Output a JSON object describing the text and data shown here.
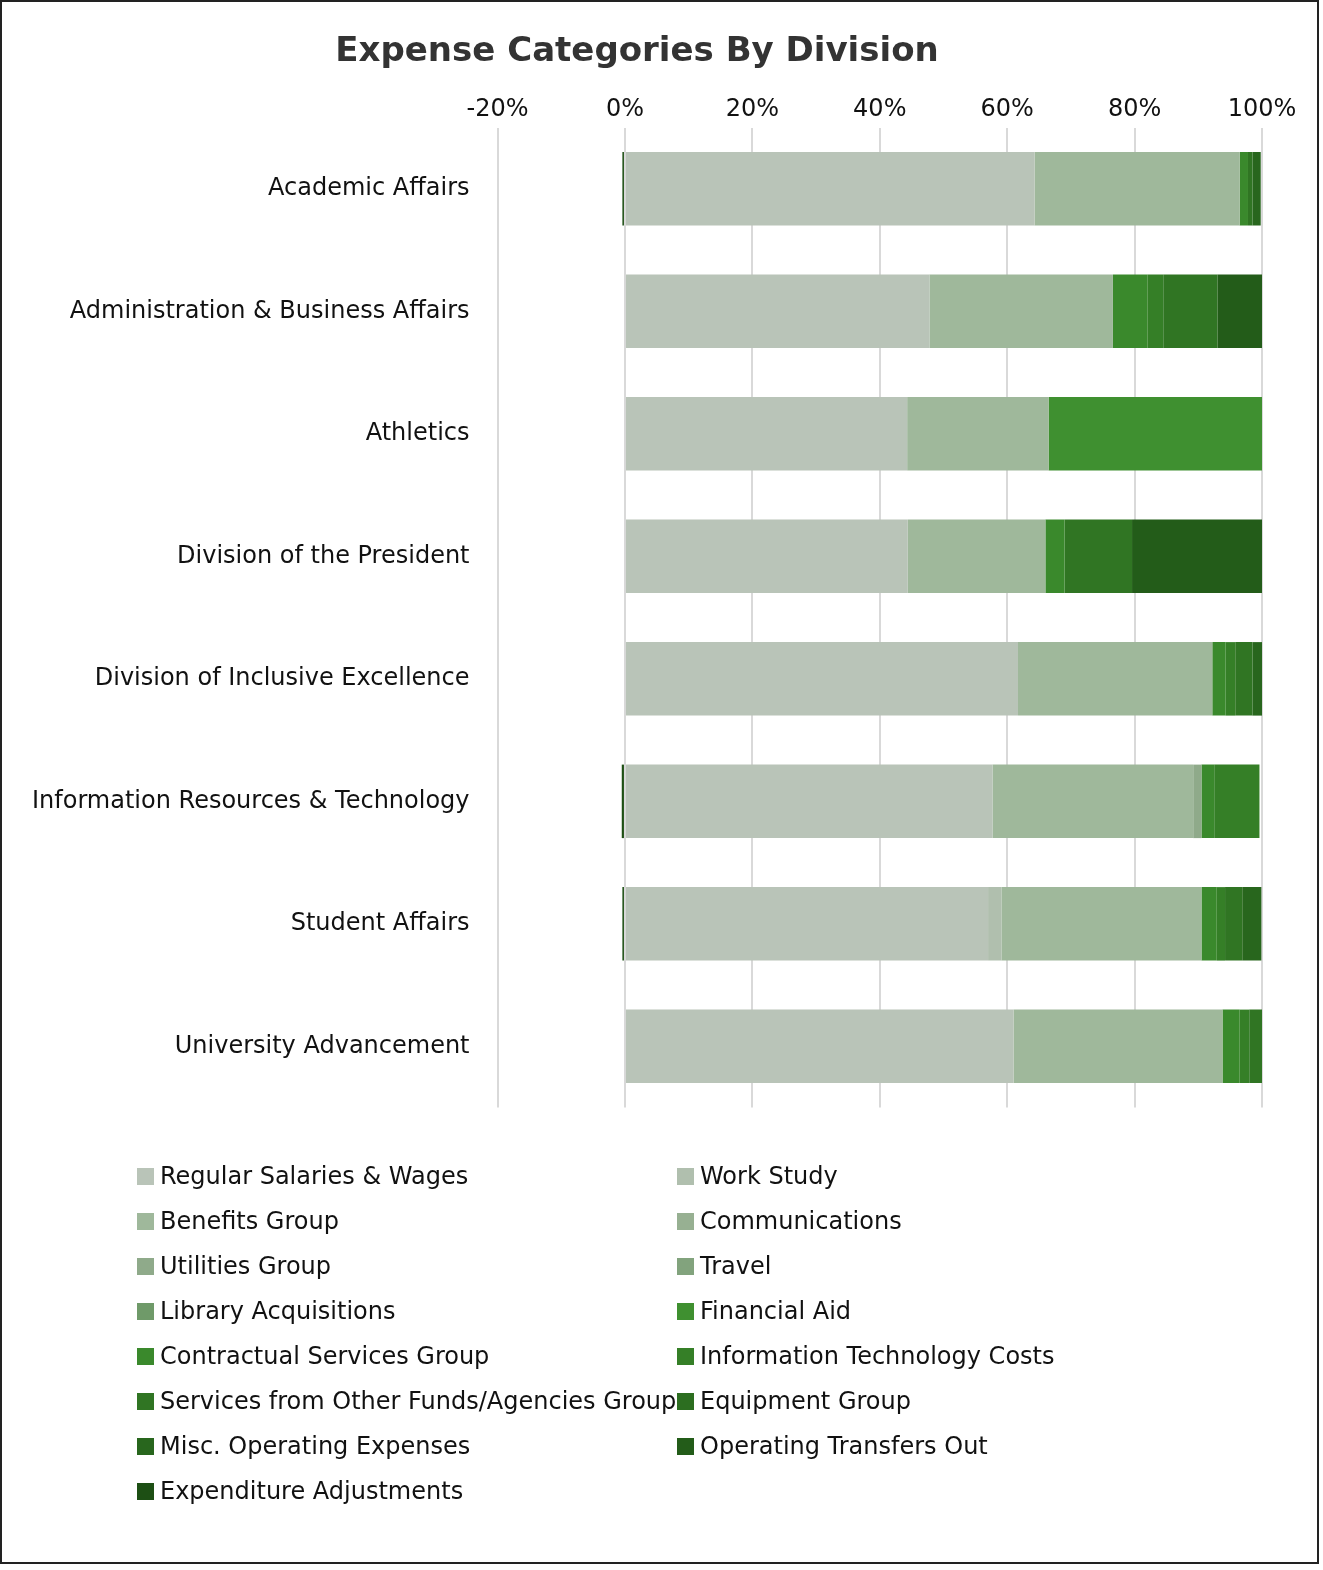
{
  "chart_data": {
    "type": "bar",
    "title": "Expense Categories By Division",
    "orientation": "horizontal",
    "stacked": true,
    "grid": "x",
    "legend": "bottom",
    "categories": [
      "Academic Affairs",
      "Administration & Business Affairs",
      "Athletics",
      "Division of the President",
      "Division of Inclusive Excellence",
      "Information Resources & Technology",
      "Student Affairs",
      "University Advancement"
    ],
    "xlim": [
      -20,
      100
    ],
    "xticks": [
      {
        "value": -20,
        "label": "-20%"
      },
      {
        "value": 0,
        "label": "0%"
      },
      {
        "value": 20,
        "label": "20%"
      },
      {
        "value": 40,
        "label": "40%"
      },
      {
        "value": 60,
        "label": "60%"
      },
      {
        "value": 80,
        "label": "80%"
      },
      {
        "value": 100,
        "label": "100%"
      }
    ],
    "series": [
      {
        "name": "Regular Salaries & Wages",
        "color": "#b9c4b8",
        "values": [
          64.3,
          47.8,
          44.3,
          44.4,
          61.7,
          57.7,
          57.0,
          61.0
        ]
      },
      {
        "name": "Work Study",
        "color": "#b0bfae",
        "values": [
          null,
          null,
          null,
          null,
          null,
          null,
          2.1,
          null
        ]
      },
      {
        "name": "Benefits Group",
        "color": "#9fb89b",
        "values": [
          32.2,
          28.8,
          22.2,
          21.6,
          30.5,
          31.5,
          31.4,
          32.8
        ]
      },
      {
        "name": "Communications",
        "color": "#97b092",
        "values": [
          null,
          null,
          null,
          null,
          null,
          null,
          null,
          null
        ]
      },
      {
        "name": "Utilities Group",
        "color": "#8faa8a",
        "values": [
          null,
          null,
          null,
          null,
          null,
          1.3,
          null,
          null
        ]
      },
      {
        "name": "Travel",
        "color": "#82a37d",
        "values": [
          null,
          null,
          null,
          null,
          null,
          null,
          null,
          null
        ]
      },
      {
        "name": "Library Acquisitions",
        "color": "#6f9a69",
        "values": [
          null,
          null,
          null,
          null,
          null,
          null,
          null,
          null
        ]
      },
      {
        "name": "Financial Aid",
        "color": "#3f9030",
        "values": [
          null,
          null,
          33.5,
          null,
          null,
          null,
          null,
          null
        ]
      },
      {
        "name": "Contractual Services Group",
        "color": "#3a892c",
        "values": [
          1.3,
          5.4,
          null,
          3.0,
          2.1,
          2.0,
          2.4,
          2.7
        ]
      },
      {
        "name": "Information Technology Costs",
        "color": "#357f27",
        "values": [
          null,
          2.5,
          null,
          null,
          1.5,
          7.1,
          1.3,
          1.5
        ]
      },
      {
        "name": "Services from Other Funds/Agencies Group",
        "color": "#307523",
        "values": [
          0.7,
          8.5,
          null,
          10.6,
          2.7,
          null,
          2.7,
          2.0
        ]
      },
      {
        "name": "Equipment Group",
        "color": "#2c6e20",
        "values": [
          null,
          null,
          null,
          null,
          null,
          null,
          null,
          null
        ]
      },
      {
        "name": "Misc. Operating Expenses",
        "color": "#28661d",
        "values": [
          1.3,
          null,
          null,
          null,
          1.5,
          null,
          3.0,
          null
        ]
      },
      {
        "name": "Operating Transfers Out",
        "color": "#235c19",
        "values": [
          null,
          7.0,
          null,
          20.4,
          null,
          null,
          null,
          null
        ]
      },
      {
        "name": "Expenditure Adjustments",
        "color": "#1d4f14",
        "values": [
          -0.4,
          null,
          null,
          null,
          null,
          -0.5,
          -0.4,
          null
        ]
      }
    ]
  }
}
